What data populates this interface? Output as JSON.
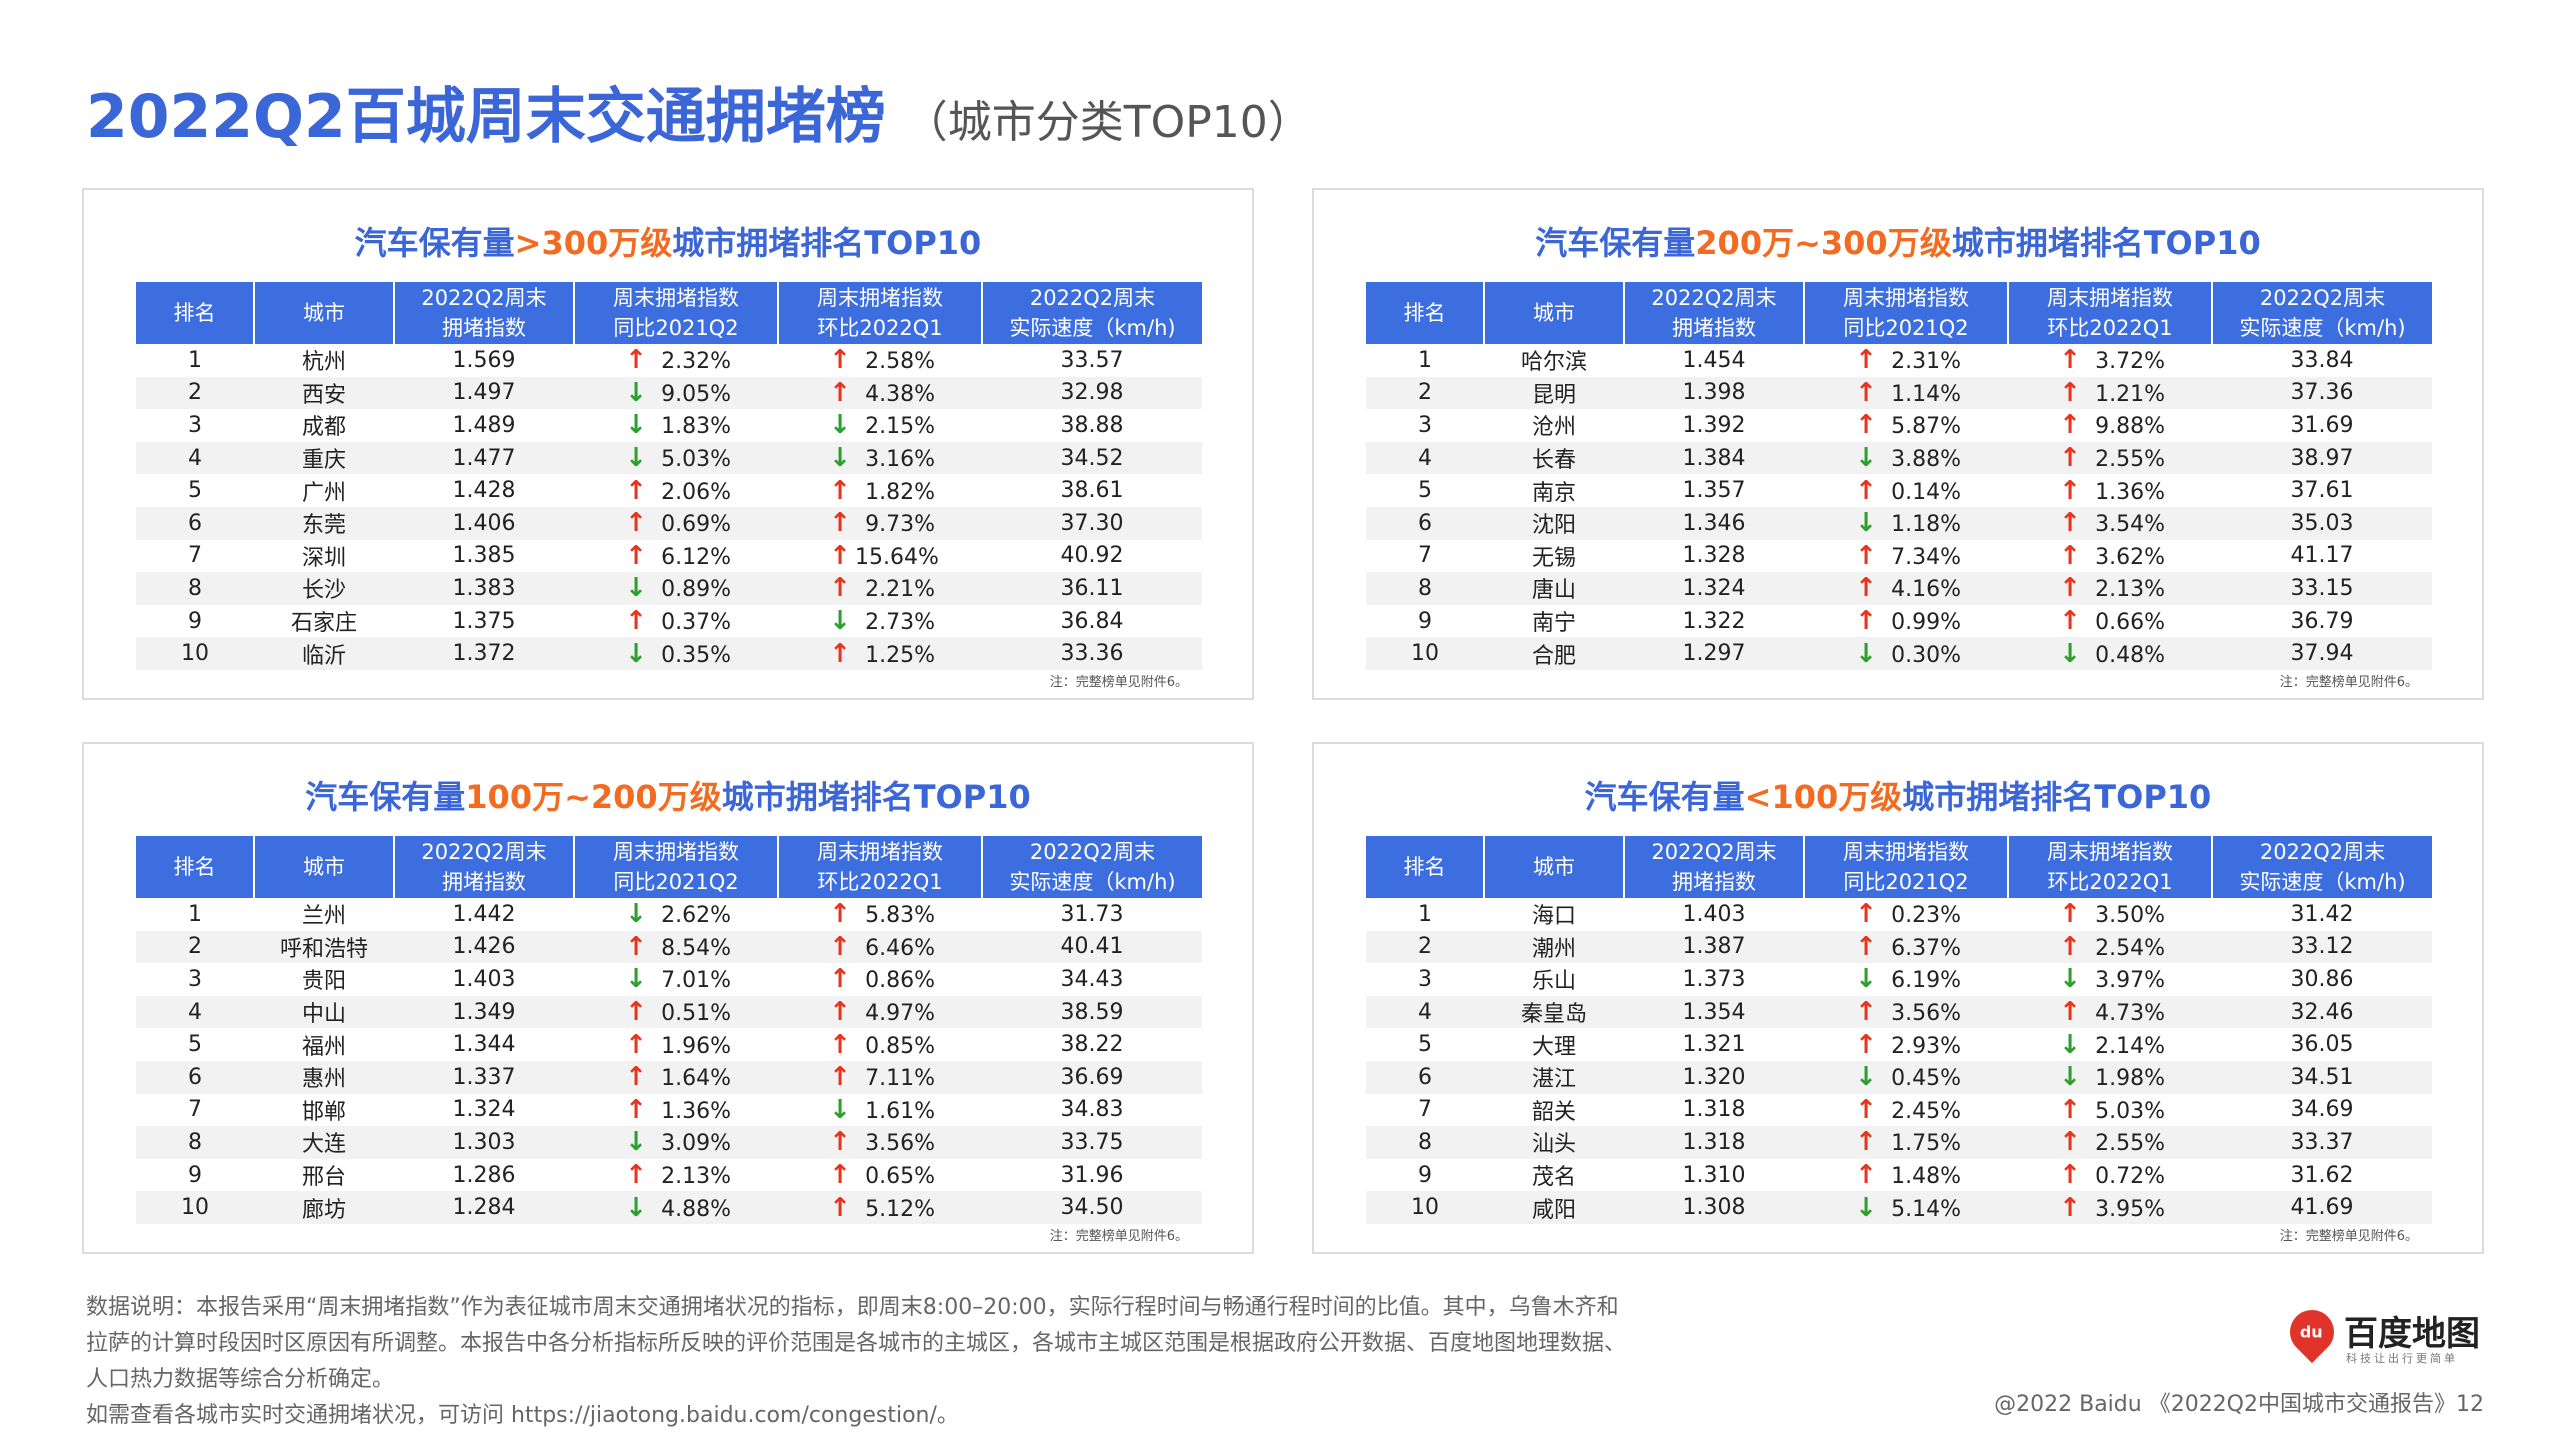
{
  "title": "2022Q2百城周末交通拥堵榜",
  "subtitle": "（城市分类TOP10）",
  "table_headers": {
    "rank": "排名",
    "city": "城市",
    "index_l1": "2022Q2周末",
    "index_l2": "拥堵指数",
    "yoy_l1": "周末拥堵指数",
    "yoy_l2": "同比2021Q2",
    "qoq_l1": "周末拥堵指数",
    "qoq_l2": "环比2022Q1",
    "speed_l1": "2022Q2周末",
    "speed_l2": "实际速度（km/h)"
  },
  "note": "注：完整榜单见附件6。",
  "colors": {
    "accent": "#3b66d8",
    "highlight": "#f26b21",
    "header_bg": "#3d6ee0",
    "up": "#e8341c",
    "down": "#2ca02c"
  },
  "panels": [
    {
      "title_pre": "汽车保有量",
      "title_hl": ">300万级",
      "title_post": "城市拥堵排名TOP10",
      "rows": [
        {
          "rank": "1",
          "city": "杭州",
          "index": "1.569",
          "yoy_dir": "up",
          "yoy": "2.32%",
          "qoq_dir": "up",
          "qoq": "2.58%",
          "speed": "33.57"
        },
        {
          "rank": "2",
          "city": "西安",
          "index": "1.497",
          "yoy_dir": "down",
          "yoy": "9.05%",
          "qoq_dir": "up",
          "qoq": "4.38%",
          "speed": "32.98"
        },
        {
          "rank": "3",
          "city": "成都",
          "index": "1.489",
          "yoy_dir": "down",
          "yoy": "1.83%",
          "qoq_dir": "down",
          "qoq": "2.15%",
          "speed": "38.88"
        },
        {
          "rank": "4",
          "city": "重庆",
          "index": "1.477",
          "yoy_dir": "down",
          "yoy": "5.03%",
          "qoq_dir": "down",
          "qoq": "3.16%",
          "speed": "34.52"
        },
        {
          "rank": "5",
          "city": "广州",
          "index": "1.428",
          "yoy_dir": "up",
          "yoy": "2.06%",
          "qoq_dir": "up",
          "qoq": "1.82%",
          "speed": "38.61"
        },
        {
          "rank": "6",
          "city": "东莞",
          "index": "1.406",
          "yoy_dir": "up",
          "yoy": "0.69%",
          "qoq_dir": "up",
          "qoq": "9.73%",
          "speed": "37.30"
        },
        {
          "rank": "7",
          "city": "深圳",
          "index": "1.385",
          "yoy_dir": "up",
          "yoy": "6.12%",
          "qoq_dir": "up",
          "qoq": "15.64%",
          "speed": "40.92"
        },
        {
          "rank": "8",
          "city": "长沙",
          "index": "1.383",
          "yoy_dir": "down",
          "yoy": "0.89%",
          "qoq_dir": "up",
          "qoq": "2.21%",
          "speed": "36.11"
        },
        {
          "rank": "9",
          "city": "石家庄",
          "index": "1.375",
          "yoy_dir": "up",
          "yoy": "0.37%",
          "qoq_dir": "down",
          "qoq": "2.73%",
          "speed": "36.84"
        },
        {
          "rank": "10",
          "city": "临沂",
          "index": "1.372",
          "yoy_dir": "down",
          "yoy": "0.35%",
          "qoq_dir": "up",
          "qoq": "1.25%",
          "speed": "33.36"
        }
      ]
    },
    {
      "title_pre": "汽车保有量",
      "title_hl": "200万~300万级",
      "title_post": "城市拥堵排名TOP10",
      "rows": [
        {
          "rank": "1",
          "city": "哈尔滨",
          "index": "1.454",
          "yoy_dir": "up",
          "yoy": "2.31%",
          "qoq_dir": "up",
          "qoq": "3.72%",
          "speed": "33.84"
        },
        {
          "rank": "2",
          "city": "昆明",
          "index": "1.398",
          "yoy_dir": "up",
          "yoy": "1.14%",
          "qoq_dir": "up",
          "qoq": "1.21%",
          "speed": "37.36"
        },
        {
          "rank": "3",
          "city": "沧州",
          "index": "1.392",
          "yoy_dir": "up",
          "yoy": "5.87%",
          "qoq_dir": "up",
          "qoq": "9.88%",
          "speed": "31.69"
        },
        {
          "rank": "4",
          "city": "长春",
          "index": "1.384",
          "yoy_dir": "down",
          "yoy": "3.88%",
          "qoq_dir": "up",
          "qoq": "2.55%",
          "speed": "38.97"
        },
        {
          "rank": "5",
          "city": "南京",
          "index": "1.357",
          "yoy_dir": "up",
          "yoy": "0.14%",
          "qoq_dir": "up",
          "qoq": "1.36%",
          "speed": "37.61"
        },
        {
          "rank": "6",
          "city": "沈阳",
          "index": "1.346",
          "yoy_dir": "down",
          "yoy": "1.18%",
          "qoq_dir": "up",
          "qoq": "3.54%",
          "speed": "35.03"
        },
        {
          "rank": "7",
          "city": "无锡",
          "index": "1.328",
          "yoy_dir": "up",
          "yoy": "7.34%",
          "qoq_dir": "up",
          "qoq": "3.62%",
          "speed": "41.17"
        },
        {
          "rank": "8",
          "city": "唐山",
          "index": "1.324",
          "yoy_dir": "up",
          "yoy": "4.16%",
          "qoq_dir": "up",
          "qoq": "2.13%",
          "speed": "33.15"
        },
        {
          "rank": "9",
          "city": "南宁",
          "index": "1.322",
          "yoy_dir": "up",
          "yoy": "0.99%",
          "qoq_dir": "up",
          "qoq": "0.66%",
          "speed": "36.79"
        },
        {
          "rank": "10",
          "city": "合肥",
          "index": "1.297",
          "yoy_dir": "down",
          "yoy": "0.30%",
          "qoq_dir": "down",
          "qoq": "0.48%",
          "speed": "37.94"
        }
      ]
    },
    {
      "title_pre": "汽车保有量",
      "title_hl": "100万~200万级",
      "title_post": "城市拥堵排名TOP10",
      "rows": [
        {
          "rank": "1",
          "city": "兰州",
          "index": "1.442",
          "yoy_dir": "down",
          "yoy": "2.62%",
          "qoq_dir": "up",
          "qoq": "5.83%",
          "speed": "31.73"
        },
        {
          "rank": "2",
          "city": "呼和浩特",
          "index": "1.426",
          "yoy_dir": "up",
          "yoy": "8.54%",
          "qoq_dir": "up",
          "qoq": "6.46%",
          "speed": "40.41"
        },
        {
          "rank": "3",
          "city": "贵阳",
          "index": "1.403",
          "yoy_dir": "down",
          "yoy": "7.01%",
          "qoq_dir": "up",
          "qoq": "0.86%",
          "speed": "34.43"
        },
        {
          "rank": "4",
          "city": "中山",
          "index": "1.349",
          "yoy_dir": "up",
          "yoy": "0.51%",
          "qoq_dir": "up",
          "qoq": "4.97%",
          "speed": "38.59"
        },
        {
          "rank": "5",
          "city": "福州",
          "index": "1.344",
          "yoy_dir": "up",
          "yoy": "1.96%",
          "qoq_dir": "up",
          "qoq": "0.85%",
          "speed": "38.22"
        },
        {
          "rank": "6",
          "city": "惠州",
          "index": "1.337",
          "yoy_dir": "up",
          "yoy": "1.64%",
          "qoq_dir": "up",
          "qoq": "7.11%",
          "speed": "36.69"
        },
        {
          "rank": "7",
          "city": "邯郸",
          "index": "1.324",
          "yoy_dir": "up",
          "yoy": "1.36%",
          "qoq_dir": "down",
          "qoq": "1.61%",
          "speed": "34.83"
        },
        {
          "rank": "8",
          "city": "大连",
          "index": "1.303",
          "yoy_dir": "down",
          "yoy": "3.09%",
          "qoq_dir": "up",
          "qoq": "3.56%",
          "speed": "33.75"
        },
        {
          "rank": "9",
          "city": "邢台",
          "index": "1.286",
          "yoy_dir": "up",
          "yoy": "2.13%",
          "qoq_dir": "up",
          "qoq": "0.65%",
          "speed": "31.96"
        },
        {
          "rank": "10",
          "city": "廊坊",
          "index": "1.284",
          "yoy_dir": "down",
          "yoy": "4.88%",
          "qoq_dir": "up",
          "qoq": "5.12%",
          "speed": "34.50"
        }
      ]
    },
    {
      "title_pre": "汽车保有量",
      "title_hl": "<100万级",
      "title_post": "城市拥堵排名TOP10",
      "rows": [
        {
          "rank": "1",
          "city": "海口",
          "index": "1.403",
          "yoy_dir": "up",
          "yoy": "0.23%",
          "qoq_dir": "up",
          "qoq": "3.50%",
          "speed": "31.42"
        },
        {
          "rank": "2",
          "city": "潮州",
          "index": "1.387",
          "yoy_dir": "up",
          "yoy": "6.37%",
          "qoq_dir": "up",
          "qoq": "2.54%",
          "speed": "33.12"
        },
        {
          "rank": "3",
          "city": "乐山",
          "index": "1.373",
          "yoy_dir": "down",
          "yoy": "6.19%",
          "qoq_dir": "down",
          "qoq": "3.97%",
          "speed": "30.86"
        },
        {
          "rank": "4",
          "city": "秦皇岛",
          "index": "1.354",
          "yoy_dir": "up",
          "yoy": "3.56%",
          "qoq_dir": "up",
          "qoq": "4.73%",
          "speed": "32.46"
        },
        {
          "rank": "5",
          "city": "大理",
          "index": "1.321",
          "yoy_dir": "up",
          "yoy": "2.93%",
          "qoq_dir": "down",
          "qoq": "2.14%",
          "speed": "36.05"
        },
        {
          "rank": "6",
          "city": "湛江",
          "index": "1.320",
          "yoy_dir": "down",
          "yoy": "0.45%",
          "qoq_dir": "down",
          "qoq": "1.98%",
          "speed": "34.51"
        },
        {
          "rank": "7",
          "city": "韶关",
          "index": "1.318",
          "yoy_dir": "up",
          "yoy": "2.45%",
          "qoq_dir": "up",
          "qoq": "5.03%",
          "speed": "34.69"
        },
        {
          "rank": "8",
          "city": "汕头",
          "index": "1.318",
          "yoy_dir": "up",
          "yoy": "1.75%",
          "qoq_dir": "up",
          "qoq": "2.55%",
          "speed": "33.37"
        },
        {
          "rank": "9",
          "city": "茂名",
          "index": "1.310",
          "yoy_dir": "up",
          "yoy": "1.48%",
          "qoq_dir": "up",
          "qoq": "0.72%",
          "speed": "31.62"
        },
        {
          "rank": "10",
          "city": "咸阳",
          "index": "1.308",
          "yoy_dir": "down",
          "yoy": "5.14%",
          "qoq_dir": "up",
          "qoq": "3.95%",
          "speed": "41.69"
        }
      ]
    }
  ],
  "footnote": {
    "line1": "数据说明：本报告采用“周末拥堵指数”作为表征城市周末交通拥堵状况的指标，即周末8:00–20:00，实际行程时间与畅通行程时间的比值。其中，乌鲁木齐和拉萨的计算时段因时区原因有所调整。本报告中各分析指标所反映的评价范围是各城市的主城区，各城市主城区范围是根据政府公开数据、百度地图地理数据、人口热力数据等综合分析确定。",
    "line2": "如需查看各城市实时交通拥堵状况，可访问 https://jiaotong.baidu.com/congestion/。"
  },
  "logo": {
    "mark": "du",
    "name": "百度地图",
    "tagline": "科技让出行更简单"
  },
  "copyright": "@2022 Baidu 《2022Q2中国城市交通报告》12"
}
